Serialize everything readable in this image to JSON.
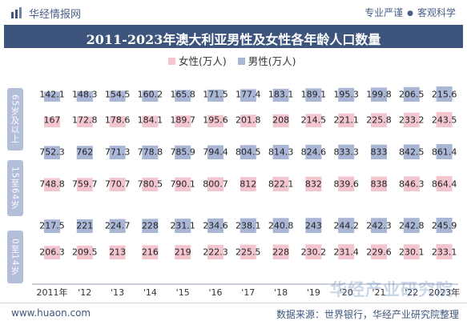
{
  "header": {
    "brand": "华经情报网",
    "tagline_left": "专业严谨",
    "tagline_sep": "●",
    "tagline_right": "客观科学"
  },
  "colors": {
    "title_bg": "#3d557d",
    "female": "#f3c6cf",
    "male": "#aab6d5",
    "label_group_bg": "#b3bfd9"
  },
  "icons": {
    "logo": "bar-chart-logo-icon"
  },
  "chart_data": {
    "type": "bar",
    "title": "2011-2023年澳大利亚男性及女性各年龄人口数量",
    "legend_position": "top",
    "grid": false,
    "categories": [
      "2011年",
      "'12",
      "'13",
      "'14",
      "'15",
      "'16",
      "'17",
      "'18",
      "'19",
      "'20",
      "'21",
      "'22",
      "2023年"
    ],
    "groups": [
      "65岁及以上",
      "15至64岁",
      "0至14岁"
    ],
    "series": [
      {
        "name": "男性(万人)",
        "group": "65岁及以上",
        "values": [
          142.1,
          148.3,
          154.5,
          160.2,
          165.8,
          171.5,
          177.4,
          183.1,
          189.1,
          195.3,
          199.8,
          206.5,
          215.6
        ]
      },
      {
        "name": "女性(万人)",
        "group": "65岁及以上",
        "values": [
          167,
          172.8,
          178.6,
          184.1,
          189.7,
          195.6,
          201.8,
          208,
          214.5,
          221.1,
          225.8,
          233.2,
          243.5
        ]
      },
      {
        "name": "男性(万人)",
        "group": "15至64岁",
        "values": [
          752.3,
          762,
          771.3,
          778.8,
          785.9,
          794.4,
          804.5,
          814.3,
          824.6,
          833.3,
          833,
          842.5,
          861.4
        ]
      },
      {
        "name": "女性(万人)",
        "group": "15至64岁",
        "values": [
          748.8,
          759.7,
          770.7,
          780.5,
          790.1,
          800.7,
          812,
          822.1,
          832,
          839.6,
          838,
          846.3,
          864.4
        ]
      },
      {
        "name": "男性(万人)",
        "group": "0至14岁",
        "values": [
          217.5,
          221,
          224.7,
          228,
          231.1,
          234.6,
          238.1,
          240.8,
          243,
          244.2,
          242.3,
          242.8,
          245.9
        ]
      },
      {
        "name": "女性(万人)",
        "group": "0至14岁",
        "values": [
          206.3,
          209.5,
          213,
          216,
          219,
          222.3,
          225.5,
          228,
          230.2,
          231.4,
          229.6,
          230.1,
          233.1
        ]
      }
    ],
    "legend": [
      "女性(万人)",
      "男性(万人)"
    ]
  },
  "footer": {
    "url": "www.huaon.com",
    "source": "数据来源：世界银行，华经产业研究院整理",
    "watermark": "华经产业研究院"
  }
}
